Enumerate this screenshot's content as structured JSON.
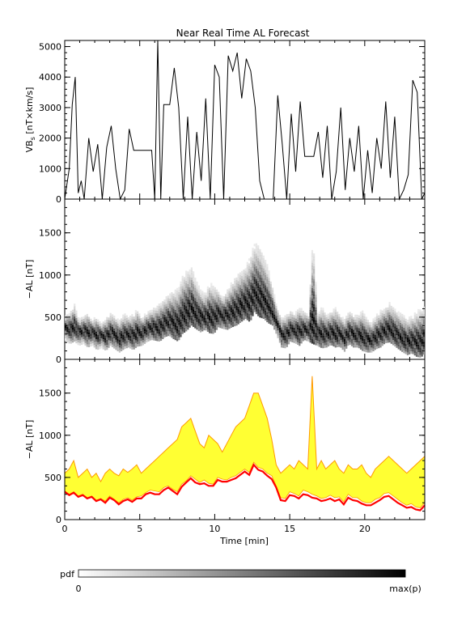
{
  "title": "Near Real Time AL Forecast",
  "colors": {
    "axis": "#000000",
    "forecast_band": "#ffff33",
    "band_edge": "#ff9900",
    "median_line": "#ff0000",
    "pdf_low": "#ffffff",
    "pdf_high": "#000000"
  },
  "chart_data": [
    {
      "type": "line",
      "ylabel_main": "VB",
      "ylabel_sub": "s",
      "ylabel_units": " [nT×km/s]",
      "xlim": [
        0,
        24
      ],
      "ylim": [
        0,
        5200
      ],
      "yticks": [
        0,
        1000,
        2000,
        3000,
        4000,
        5000
      ],
      "x": [
        0,
        0.3,
        0.5,
        0.7,
        0.9,
        1.1,
        1.3,
        1.6,
        1.9,
        2.2,
        2.5,
        2.8,
        3.1,
        3.4,
        3.7,
        4.0,
        4.3,
        4.6,
        4.9,
        5.2,
        5.5,
        5.8,
        6.0,
        6.2,
        6.4,
        6.6,
        6.8,
        7.0,
        7.3,
        7.6,
        7.9,
        8.2,
        8.5,
        8.8,
        9.1,
        9.4,
        9.7,
        10.0,
        10.3,
        10.6,
        10.9,
        11.2,
        11.5,
        11.8,
        12.1,
        12.4,
        12.7,
        13.0,
        13.3,
        13.6,
        13.9,
        14.2,
        14.5,
        14.8,
        15.1,
        15.4,
        15.7,
        16.0,
        16.3,
        16.6,
        16.9,
        17.2,
        17.5,
        17.8,
        18.1,
        18.4,
        18.7,
        19.0,
        19.3,
        19.6,
        19.9,
        20.2,
        20.5,
        20.8,
        21.1,
        21.4,
        21.7,
        22.0,
        22.3,
        22.6,
        22.9,
        23.2,
        23.5,
        23.8,
        24.0
      ],
      "y": [
        0,
        1000,
        3100,
        4000,
        200,
        600,
        0,
        2000,
        900,
        1800,
        0,
        1700,
        2400,
        1000,
        0,
        300,
        2300,
        1600,
        1600,
        1600,
        1600,
        1600,
        0,
        5200,
        0,
        3100,
        3100,
        3100,
        4300,
        3000,
        0,
        2700,
        0,
        2200,
        600,
        3300,
        0,
        4400,
        4000,
        0,
        4700,
        4200,
        4800,
        3300,
        4600,
        4200,
        3000,
        600,
        0,
        0,
        0,
        3400,
        1800,
        0,
        2800,
        900,
        3200,
        1400,
        1400,
        1400,
        2200,
        700,
        2400,
        0,
        900,
        3000,
        300,
        2000,
        900,
        2400,
        0,
        1600,
        200,
        2000,
        1000,
        3200,
        700,
        2700,
        0,
        300,
        800,
        3900,
        3500,
        0,
        200
      ]
    },
    {
      "type": "heatmap",
      "ylabel": "−AL [nT]",
      "xlim": [
        0,
        24
      ],
      "ylim": [
        0,
        1900
      ],
      "yticks": [
        0,
        500,
        1000,
        1500
      ]
    },
    {
      "type": "area",
      "ylabel": "−AL [nT]",
      "xlabel": "Time [min]",
      "xlim": [
        0,
        24
      ],
      "xticks": [
        0,
        5,
        10,
        15,
        20
      ],
      "ylim": [
        0,
        1900
      ],
      "yticks": [
        0,
        500,
        1000,
        1500
      ],
      "x": [
        0,
        0.3,
        0.6,
        0.9,
        1.2,
        1.5,
        1.8,
        2.1,
        2.4,
        2.7,
        3.0,
        3.3,
        3.6,
        3.9,
        4.2,
        4.5,
        4.8,
        5.1,
        5.4,
        5.7,
        6.0,
        6.3,
        6.6,
        6.9,
        7.2,
        7.5,
        7.8,
        8.1,
        8.4,
        8.7,
        9.0,
        9.3,
        9.6,
        9.9,
        10.2,
        10.5,
        10.8,
        11.1,
        11.4,
        11.7,
        12.0,
        12.3,
        12.6,
        12.9,
        13.2,
        13.5,
        13.8,
        14.1,
        14.4,
        14.7,
        15.0,
        15.3,
        15.6,
        15.9,
        16.2,
        16.5,
        16.8,
        17.1,
        17.4,
        17.7,
        18.0,
        18.3,
        18.6,
        18.9,
        19.2,
        19.5,
        19.8,
        20.1,
        20.4,
        20.7,
        21.0,
        21.3,
        21.6,
        21.9,
        22.2,
        22.5,
        22.8,
        23.1,
        23.4,
        23.7,
        24.0
      ],
      "upper": [
        550,
        600,
        700,
        500,
        550,
        600,
        500,
        550,
        450,
        550,
        600,
        550,
        520,
        600,
        560,
        600,
        650,
        550,
        600,
        650,
        700,
        750,
        800,
        850,
        900,
        950,
        1100,
        1150,
        1200,
        1050,
        900,
        850,
        1000,
        950,
        900,
        800,
        900,
        1000,
        1100,
        1150,
        1200,
        1350,
        1500,
        1500,
        1350,
        1200,
        950,
        650,
        550,
        600,
        650,
        600,
        700,
        650,
        600,
        1700,
        600,
        700,
        600,
        650,
        700,
        600,
        550,
        650,
        600,
        600,
        650,
        550,
        500,
        600,
        650,
        700,
        750,
        700,
        650,
        600,
        550,
        600,
        650,
        700,
        750
      ],
      "lower": [
        340,
        300,
        330,
        280,
        300,
        260,
        280,
        230,
        250,
        220,
        280,
        240,
        200,
        240,
        260,
        230,
        270,
        280,
        320,
        350,
        340,
        330,
        380,
        400,
        360,
        330,
        420,
        460,
        520,
        480,
        440,
        470,
        430,
        420,
        500,
        480,
        470,
        500,
        520,
        560,
        600,
        560,
        680,
        620,
        600,
        550,
        520,
        400,
        260,
        250,
        330,
        310,
        280,
        350,
        330,
        300,
        280,
        250,
        260,
        290,
        260,
        270,
        210,
        300,
        260,
        260,
        220,
        200,
        200,
        240,
        260,
        310,
        320,
        280,
        240,
        200,
        170,
        190,
        150,
        140,
        200
      ],
      "median": [
        330,
        290,
        320,
        270,
        290,
        250,
        270,
        220,
        240,
        200,
        260,
        230,
        180,
        220,
        240,
        210,
        250,
        250,
        300,
        320,
        300,
        300,
        350,
        380,
        340,
        300,
        390,
        440,
        490,
        440,
        420,
        430,
        400,
        400,
        470,
        450,
        450,
        470,
        490,
        530,
        570,
        530,
        650,
        590,
        570,
        520,
        480,
        380,
        230,
        220,
        290,
        280,
        250,
        300,
        290,
        260,
        250,
        220,
        230,
        250,
        220,
        240,
        180,
        260,
        230,
        220,
        190,
        170,
        170,
        200,
        230,
        270,
        280,
        240,
        200,
        170,
        140,
        150,
        120,
        110,
        170
      ]
    }
  ],
  "colorbar": {
    "label": "pdf",
    "min_label": "0",
    "max_label": "max(p)"
  }
}
